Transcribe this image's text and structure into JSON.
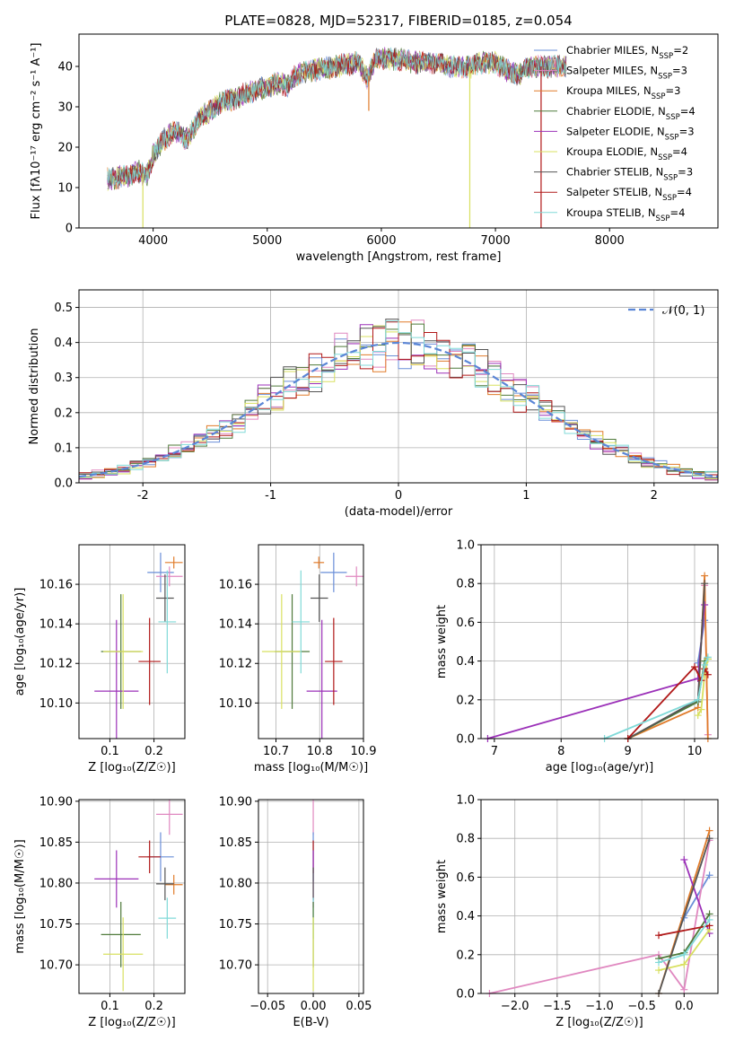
{
  "figure": {
    "title": "PLATE=0828, MJD=52317, FIBERID=0185, z=0.054"
  },
  "series_colors": [
    {
      "name": "Chabrier MILES",
      "n_ssp": "2",
      "color": "#6a8fd8"
    },
    {
      "name": "Salpeter MILES",
      "n_ssp": "3",
      "color": "#e088c0"
    },
    {
      "name": "Kroupa MILES",
      "n_ssp": "3",
      "color": "#e07b2a"
    },
    {
      "name": "Chabrier ELODIE",
      "n_ssp": "4",
      "color": "#4f7a3a"
    },
    {
      "name": "Salpeter ELODIE",
      "n_ssp": "3",
      "color": "#9b30b8"
    },
    {
      "name": "Kroupa ELODIE",
      "n_ssp": "4",
      "color": "#d8e060"
    },
    {
      "name": "Chabrier STELIB",
      "n_ssp": "3",
      "color": "#555555"
    },
    {
      "name": "Salpeter STELIB",
      "n_ssp": "4",
      "color": "#b01818"
    },
    {
      "name": "Kroupa STELIB",
      "n_ssp": "4",
      "color": "#80dad8"
    }
  ],
  "chart_data": [
    {
      "id": "spectrum",
      "type": "line",
      "title": "PLATE=0828, MJD=52317, FIBERID=0185, z=0.054",
      "xlabel": "wavelength [Angstrom, rest frame]",
      "ylabel": "Flux [fλ10⁻¹⁷ erg cm⁻² s⁻¹ A⁻¹]",
      "xlim": [
        3350,
        8950
      ],
      "ylim": [
        0,
        48
      ],
      "xticks": [
        4000,
        5000,
        6000,
        7000,
        8000
      ],
      "yticks": [
        0,
        10,
        20,
        30,
        40
      ],
      "legend_position": "right",
      "legend_entries": [
        "Chabrier MILES, N_SSP=2",
        "Salpeter MILES, N_SSP=3",
        "Kroupa MILES, N_SSP=3",
        "Chabrier ELODIE, N_SSP=4",
        "Salpeter ELODIE, N_SSP=3",
        "Kroupa ELODIE, N_SSP=4",
        "Chabrier STELIB, N_SSP=3",
        "Salpeter STELIB, N_SSP=4",
        "Kroupa STELIB, N_SSP=4"
      ],
      "continuum": {
        "x": [
          3600,
          3700,
          3800,
          3870,
          3950,
          4000,
          4100,
          4200,
          4300,
          4400,
          4600,
          4800,
          5000,
          5100,
          5180,
          5250,
          5400,
          5600,
          5800,
          5880,
          5950,
          6100,
          6300,
          6500,
          6600,
          6800,
          6900,
          7000,
          7100,
          7200,
          7300,
          7400,
          7500,
          7600
        ],
        "y": [
          12,
          12.5,
          13,
          14,
          13,
          18,
          22,
          24,
          22,
          27,
          31,
          33,
          35,
          36,
          35,
          38,
          39,
          40,
          41,
          37,
          42,
          42,
          41,
          41,
          40,
          40,
          41,
          41,
          39,
          38,
          40,
          40,
          40,
          40
        ]
      },
      "artifacts": [
        {
          "series": "Kroupa ELODIE",
          "x": 3910,
          "y_low": 0
        },
        {
          "series": "Kroupa ELODIE",
          "x": 6775,
          "y_low": 0
        },
        {
          "series": "Salpeter STELIB",
          "x": 7400,
          "y_low": 0
        },
        {
          "series": "Kroupa MILES",
          "x": 5890,
          "y_low": 29
        }
      ]
    },
    {
      "id": "residual-histogram",
      "type": "step-histogram",
      "xlabel": "(data-model)/error",
      "ylabel": "Normed distribution",
      "xlim": [
        -2.5,
        2.5
      ],
      "ylim": [
        0,
        0.55
      ],
      "xticks": [
        -2,
        -1,
        0,
        1,
        2
      ],
      "yticks": [
        0.0,
        0.1,
        0.2,
        0.3,
        0.4,
        0.5
      ],
      "bin_width": 0.1,
      "grid": true,
      "reference_curve": {
        "label": "𝒩(0, 1)",
        "mean": 0,
        "sigma": 1,
        "style": "dashed",
        "color": "#5b86d6"
      },
      "legend_position": "top-right"
    },
    {
      "id": "age-vs-z",
      "type": "errorbar",
      "xlabel": "Z [log₁₀(Z/Z☉)]",
      "ylabel": "age  [log₁₀(age/yr)]",
      "xlim": [
        0.03,
        0.27
      ],
      "ylim": [
        10.082,
        10.18
      ],
      "xticks": [
        0.1,
        0.2
      ],
      "yticks": [
        10.1,
        10.12,
        10.14,
        10.16
      ],
      "grid": true,
      "points": [
        {
          "series": "Chabrier MILES",
          "x": 0.215,
          "xerr": 0.03,
          "y": 10.166,
          "yerr": 0.01
        },
        {
          "series": "Salpeter MILES",
          "x": 0.235,
          "xerr": 0.03,
          "y": 10.164,
          "yerr": 0.005
        },
        {
          "series": "Kroupa MILES",
          "x": 0.245,
          "xerr": 0.02,
          "y": 10.171,
          "yerr": 0.003
        },
        {
          "series": "Chabrier ELODIE",
          "x": 0.125,
          "xerr": 0.045,
          "y": 10.126,
          "yerr": 0.029
        },
        {
          "series": "Salpeter ELODIE",
          "x": 0.115,
          "xerr": 0.05,
          "y": 10.106,
          "yerr": 0.036
        },
        {
          "series": "Kroupa ELODIE",
          "x": 0.13,
          "xerr": 0.045,
          "y": 10.126,
          "yerr": 0.029
        },
        {
          "series": "Chabrier STELIB",
          "x": 0.225,
          "xerr": 0.02,
          "y": 10.153,
          "yerr": 0.012
        },
        {
          "series": "Salpeter STELIB",
          "x": 0.19,
          "xerr": 0.025,
          "y": 10.121,
          "yerr": 0.022
        },
        {
          "series": "Kroupa STELIB",
          "x": 0.23,
          "xerr": 0.02,
          "y": 10.141,
          "yerr": 0.026
        }
      ]
    },
    {
      "id": "age-vs-mass",
      "type": "errorbar",
      "xlabel": "mass [log₁₀(M/M☉)]",
      "ylabel": "",
      "xlim": [
        10.66,
        10.9
      ],
      "ylim": [
        10.082,
        10.18
      ],
      "xticks": [
        10.7,
        10.8,
        10.9
      ],
      "yticks": [
        10.1,
        10.12,
        10.14,
        10.16
      ],
      "grid": true,
      "points": [
        {
          "series": "Chabrier MILES",
          "x": 10.832,
          "xerr": 0.03,
          "y": 10.166,
          "yerr": 0.01
        },
        {
          "series": "Salpeter MILES",
          "x": 10.884,
          "xerr": 0.025,
          "y": 10.164,
          "yerr": 0.005
        },
        {
          "series": "Kroupa MILES",
          "x": 10.798,
          "xerr": 0.012,
          "y": 10.171,
          "yerr": 0.003
        },
        {
          "series": "Chabrier ELODIE",
          "x": 10.737,
          "xerr": 0.04,
          "y": 10.126,
          "yerr": 0.029
        },
        {
          "series": "Salpeter ELODIE",
          "x": 10.805,
          "xerr": 0.035,
          "y": 10.106,
          "yerr": 0.036
        },
        {
          "series": "Kroupa ELODIE",
          "x": 10.713,
          "xerr": 0.045,
          "y": 10.126,
          "yerr": 0.029
        },
        {
          "series": "Chabrier STELIB",
          "x": 10.799,
          "xerr": 0.02,
          "y": 10.153,
          "yerr": 0.012
        },
        {
          "series": "Salpeter STELIB",
          "x": 10.832,
          "xerr": 0.02,
          "y": 10.121,
          "yerr": 0.022
        },
        {
          "series": "Kroupa STELIB",
          "x": 10.757,
          "xerr": 0.02,
          "y": 10.141,
          "yerr": 0.026
        }
      ]
    },
    {
      "id": "weight-vs-age",
      "type": "line",
      "xlabel": "age  [log₁₀(age/yr)]",
      "ylabel": "mass weight",
      "xlim": [
        6.8,
        10.35
      ],
      "ylim": [
        0,
        1
      ],
      "xticks": [
        7,
        8,
        9,
        10
      ],
      "yticks": [
        0.0,
        0.2,
        0.4,
        0.6,
        0.8,
        1.0
      ],
      "grid": true,
      "series": [
        {
          "name": "Chabrier MILES",
          "x": [
            10.05,
            10.15
          ],
          "y": [
            0.39,
            0.61
          ]
        },
        {
          "name": "Salpeter MILES",
          "x": [
            10.05,
            10.15,
            10.2
          ],
          "y": [
            0.19,
            0.79,
            0.02
          ]
        },
        {
          "name": "Kroupa MILES",
          "x": [
            9.0,
            10.05,
            10.15,
            10.2
          ],
          "y": [
            0.0,
            0.16,
            0.84,
            0.0
          ]
        },
        {
          "name": "Chabrier ELODIE",
          "x": [
            9.0,
            10.05,
            10.15,
            10.2
          ],
          "y": [
            0.0,
            0.19,
            0.4,
            0.41
          ]
        },
        {
          "name": "Salpeter ELODIE",
          "x": [
            6.9,
            10.05,
            10.15
          ],
          "y": [
            0.0,
            0.31,
            0.69
          ]
        },
        {
          "name": "Kroupa ELODIE",
          "x": [
            10.05,
            10.1,
            10.15,
            10.2
          ],
          "y": [
            0.12,
            0.15,
            0.33,
            0.41
          ]
        },
        {
          "name": "Chabrier STELIB",
          "x": [
            9.0,
            10.05,
            10.15
          ],
          "y": [
            0.0,
            0.2,
            0.8
          ]
        },
        {
          "name": "Salpeter STELIB",
          "x": [
            9.0,
            10.0,
            10.1,
            10.15,
            10.2
          ],
          "y": [
            0.0,
            0.37,
            0.3,
            0.36,
            0.33
          ]
        },
        {
          "name": "Kroupa STELIB",
          "x": [
            8.65,
            10.05,
            10.15,
            10.2
          ],
          "y": [
            0.0,
            0.2,
            0.38,
            0.42
          ]
        }
      ]
    },
    {
      "id": "mass-vs-z",
      "type": "errorbar",
      "xlabel": "Z [log₁₀(Z/Z☉)]",
      "ylabel": "mass [log₁₀(M/M☉)]",
      "xlim": [
        0.03,
        0.27
      ],
      "ylim": [
        10.665,
        10.902
      ],
      "xticks": [
        0.1,
        0.2
      ],
      "yticks": [
        10.7,
        10.75,
        10.8,
        10.85,
        10.9
      ],
      "grid": true,
      "points": [
        {
          "series": "Chabrier MILES",
          "x": 0.215,
          "xerr": 0.03,
          "y": 10.832,
          "yerr": 0.03
        },
        {
          "series": "Salpeter MILES",
          "x": 0.235,
          "xerr": 0.03,
          "y": 10.884,
          "yerr": 0.025
        },
        {
          "series": "Kroupa MILES",
          "x": 0.245,
          "xerr": 0.02,
          "y": 10.798,
          "yerr": 0.012
        },
        {
          "series": "Chabrier ELODIE",
          "x": 0.125,
          "xerr": 0.045,
          "y": 10.737,
          "yerr": 0.04
        },
        {
          "series": "Salpeter ELODIE",
          "x": 0.115,
          "xerr": 0.05,
          "y": 10.805,
          "yerr": 0.035
        },
        {
          "series": "Kroupa ELODIE",
          "x": 0.13,
          "xerr": 0.045,
          "y": 10.713,
          "yerr": 0.045
        },
        {
          "series": "Chabrier STELIB",
          "x": 0.225,
          "xerr": 0.02,
          "y": 10.799,
          "yerr": 0.02
        },
        {
          "series": "Salpeter STELIB",
          "x": 0.19,
          "xerr": 0.025,
          "y": 10.832,
          "yerr": 0.02
        },
        {
          "series": "Kroupa STELIB",
          "x": 0.23,
          "xerr": 0.02,
          "y": 10.757,
          "yerr": 0.025
        }
      ]
    },
    {
      "id": "mass-vs-ebv",
      "type": "errorbar",
      "xlabel": "E(B-V)",
      "ylabel": "",
      "xlim": [
        -0.06,
        0.055
      ],
      "ylim": [
        10.665,
        10.902
      ],
      "xticks": [
        -0.05,
        0.0,
        0.05
      ],
      "xtick_labels": [
        "−0.05",
        "0.00",
        "0.05"
      ],
      "yticks": [
        10.7,
        10.75,
        10.8,
        10.85,
        10.9
      ],
      "grid": true,
      "points": [
        {
          "series": "Salpeter MILES",
          "x": 0.0,
          "y": 10.884,
          "yerr": 0.025
        },
        {
          "series": "Chabrier MILES",
          "x": 0.0,
          "y": 10.832,
          "yerr": 0.03
        },
        {
          "series": "Salpeter STELIB",
          "x": 0.0,
          "y": 10.832,
          "yerr": 0.02
        },
        {
          "series": "Salpeter ELODIE",
          "x": 0.0,
          "y": 10.805,
          "yerr": 0.035
        },
        {
          "series": "Chabrier STELIB",
          "x": 0.0,
          "y": 10.799,
          "yerr": 0.02
        },
        {
          "series": "Kroupa STELIB",
          "x": 0.0,
          "y": 10.757,
          "yerr": 0.025
        },
        {
          "series": "Chabrier ELODIE",
          "x": 0.0,
          "y": 10.737,
          "yerr": 0.04
        },
        {
          "series": "Kroupa ELODIE",
          "x": 0.0,
          "y": 10.713,
          "yerr": 0.045
        }
      ]
    },
    {
      "id": "weight-vs-z",
      "type": "line",
      "xlabel": "Z [log₁₀(Z/Z☉)]",
      "ylabel": "mass weight",
      "xlim": [
        -2.4,
        0.4
      ],
      "ylim": [
        0,
        1
      ],
      "xticks": [
        -2.0,
        -1.5,
        -1.0,
        -0.5,
        0.0
      ],
      "xtick_labels": [
        "−2.0",
        "−1.5",
        "−1.0",
        "−0.5",
        "0.0"
      ],
      "yticks": [
        0.0,
        0.2,
        0.4,
        0.6,
        0.8,
        1.0
      ],
      "grid": true,
      "series": [
        {
          "name": "Chabrier MILES",
          "x": [
            0.0,
            0.3
          ],
          "y": [
            0.39,
            0.61
          ]
        },
        {
          "name": "Salpeter MILES",
          "x": [
            -2.3,
            -0.3,
            0.0,
            0.3
          ],
          "y": [
            0.0,
            0.2,
            0.02,
            0.79
          ]
        },
        {
          "name": "Kroupa MILES",
          "x": [
            -0.3,
            0.3
          ],
          "y": [
            0.0,
            0.84
          ]
        },
        {
          "name": "Chabrier ELODIE",
          "x": [
            -0.3,
            0.0,
            0.3
          ],
          "y": [
            0.18,
            0.21,
            0.41
          ]
        },
        {
          "name": "Salpeter ELODIE",
          "x": [
            0.0,
            0.3
          ],
          "y": [
            0.69,
            0.31
          ]
        },
        {
          "name": "Kroupa ELODIE",
          "x": [
            -0.3,
            0.0,
            0.3
          ],
          "y": [
            0.12,
            0.15,
            0.33
          ]
        },
        {
          "name": "Chabrier STELIB",
          "x": [
            -0.3,
            0.3
          ],
          "y": [
            0.0,
            0.8
          ]
        },
        {
          "name": "Salpeter STELIB",
          "x": [
            -0.3,
            0.3
          ],
          "y": [
            0.3,
            0.35
          ]
        },
        {
          "name": "Kroupa STELIB",
          "x": [
            -0.3,
            0.0,
            0.3
          ],
          "y": [
            0.16,
            0.2,
            0.38
          ]
        }
      ]
    }
  ]
}
